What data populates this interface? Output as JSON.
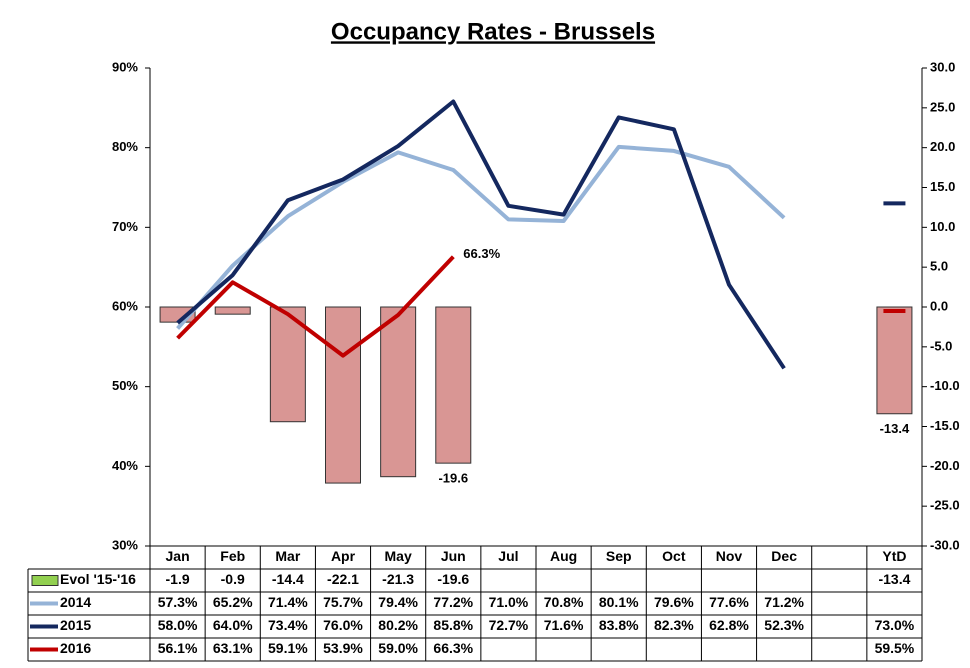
{
  "chart_data": {
    "type": "combo",
    "title": "Occupancy Rates - Brussels",
    "categories": [
      "Jan",
      "Feb",
      "Mar",
      "Apr",
      "May",
      "Jun",
      "Jul",
      "Aug",
      "Sep",
      "Oct",
      "Nov",
      "Dec",
      null,
      "YtD"
    ],
    "ylim": [
      30,
      90
    ],
    "yticks": [
      {
        "value": 30,
        "label": "30%"
      },
      {
        "value": 40,
        "label": "40%"
      },
      {
        "value": 50,
        "label": "50%"
      },
      {
        "value": 60,
        "label": "60%"
      },
      {
        "value": 70,
        "label": "70%"
      },
      {
        "value": 80,
        "label": "80%"
      },
      {
        "value": 90,
        "label": "90%"
      }
    ],
    "y2lim": [
      -30,
      30
    ],
    "y2ticks": [
      {
        "value": 30,
        "label": "30.0"
      },
      {
        "value": 25,
        "label": "25.0"
      },
      {
        "value": 20,
        "label": "20.0"
      },
      {
        "value": 15,
        "label": "15.0"
      },
      {
        "value": 10,
        "label": "10.0"
      },
      {
        "value": 5,
        "label": "5.0"
      },
      {
        "value": 0,
        "label": "0.0"
      },
      {
        "value": -5,
        "label": "-5.0"
      },
      {
        "value": -10,
        "label": "-10.0"
      },
      {
        "value": -15,
        "label": "-15.0"
      },
      {
        "value": -20,
        "label": "-20.0"
      },
      {
        "value": -25,
        "label": "-25.0"
      },
      {
        "value": -30,
        "label": "-30.0"
      }
    ],
    "series": [
      {
        "name": "Evol '15-'16",
        "kind": "bar",
        "axis": "y2",
        "color": "#d99694",
        "key_color": "#92d050",
        "values": [
          -1.9,
          -0.9,
          -14.4,
          -22.1,
          -21.3,
          -19.6,
          null,
          null,
          null,
          null,
          null,
          null,
          null,
          -13.4
        ],
        "label_points": [
          5,
          13
        ]
      },
      {
        "name": "2014",
        "kind": "line",
        "color": "#95b3d7",
        "values": [
          57.3,
          65.2,
          71.4,
          75.7,
          79.4,
          77.2,
          71.0,
          70.8,
          80.1,
          79.6,
          77.6,
          71.2,
          null,
          null
        ],
        "value_labels": [
          "57.3%",
          "65.2%",
          "71.4%",
          "75.7%",
          "79.4%",
          "77.2%",
          "71.0%",
          "70.8%",
          "80.1%",
          "79.6%",
          "77.6%",
          "71.2%",
          null,
          null
        ]
      },
      {
        "name": "2015",
        "kind": "line",
        "color": "#14285f",
        "values": [
          58.0,
          64.0,
          73.4,
          76.0,
          80.2,
          85.8,
          72.7,
          71.6,
          83.8,
          82.3,
          62.8,
          52.3,
          null,
          73.0
        ],
        "value_labels": [
          "58.0%",
          "64.0%",
          "73.4%",
          "76.0%",
          "80.2%",
          "85.8%",
          "72.7%",
          "71.6%",
          "83.8%",
          "82.3%",
          "62.8%",
          "52.3%",
          null,
          "73.0%"
        ]
      },
      {
        "name": "2016",
        "kind": "line",
        "color": "#c00000",
        "values": [
          56.1,
          63.1,
          59.1,
          53.9,
          59.0,
          66.3,
          null,
          null,
          null,
          null,
          null,
          null,
          null,
          59.5
        ],
        "value_labels": [
          "56.1%",
          "63.1%",
          "59.1%",
          "53.9%",
          "59.0%",
          "66.3%",
          null,
          null,
          null,
          null,
          null,
          null,
          null,
          "59.5%"
        ],
        "label_points": [
          5
        ]
      }
    ]
  }
}
